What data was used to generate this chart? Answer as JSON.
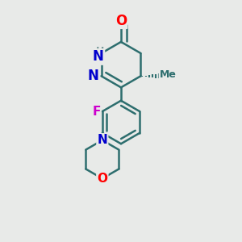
{
  "background_color": "#e8eae8",
  "bond_color": "#2d6e6e",
  "bond_width": 1.8,
  "atom_colors": {
    "O": "#ff0000",
    "N": "#0000cc",
    "F": "#cc00cc",
    "O_morph": "#ff0000"
  },
  "figsize": [
    3.0,
    3.0
  ],
  "dpi": 100
}
